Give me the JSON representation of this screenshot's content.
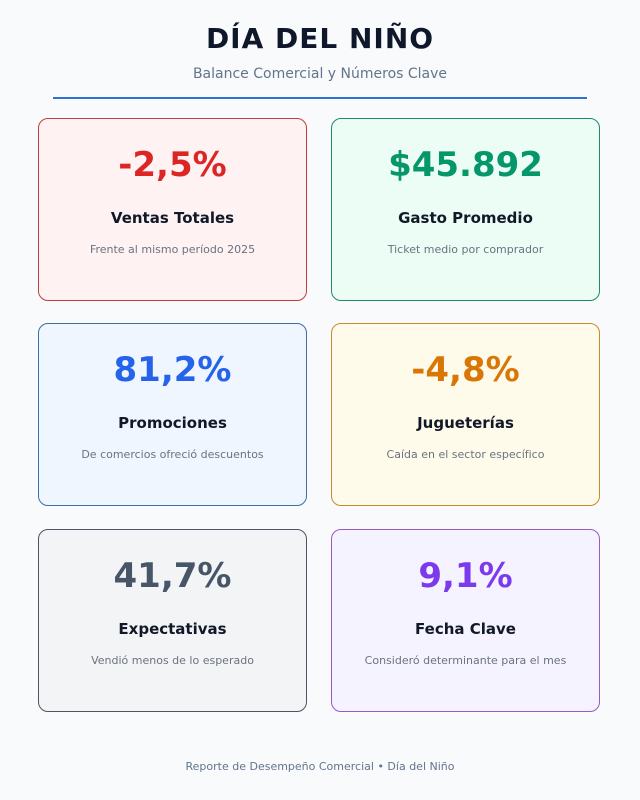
{
  "header": {
    "title": "DÍA DEL NIÑO",
    "subtitle": "Balance Comercial y Números Clave"
  },
  "cards": [
    {
      "value": "-2,5%",
      "label": "Ventas Totales",
      "description": "Frente al mismo período 2025"
    },
    {
      "value": "$45.892",
      "label": "Gasto Promedio",
      "description": "Ticket medio por comprador"
    },
    {
      "value": "81,2%",
      "label": "Promociones",
      "description": "De comercios ofreció descuentos"
    },
    {
      "value": "-4,8%",
      "label": "Jugueterías",
      "description": "Caída en el sector específico"
    },
    {
      "value": "41,7%",
      "label": "Expectativas",
      "description": "Vendió menos de lo esperado"
    },
    {
      "value": "9,1%",
      "label": "Fecha Clave",
      "description": "Consideró determinante para el mes"
    }
  ],
  "footer": "Reporte de Desempeño Comercial • Día del Niño"
}
